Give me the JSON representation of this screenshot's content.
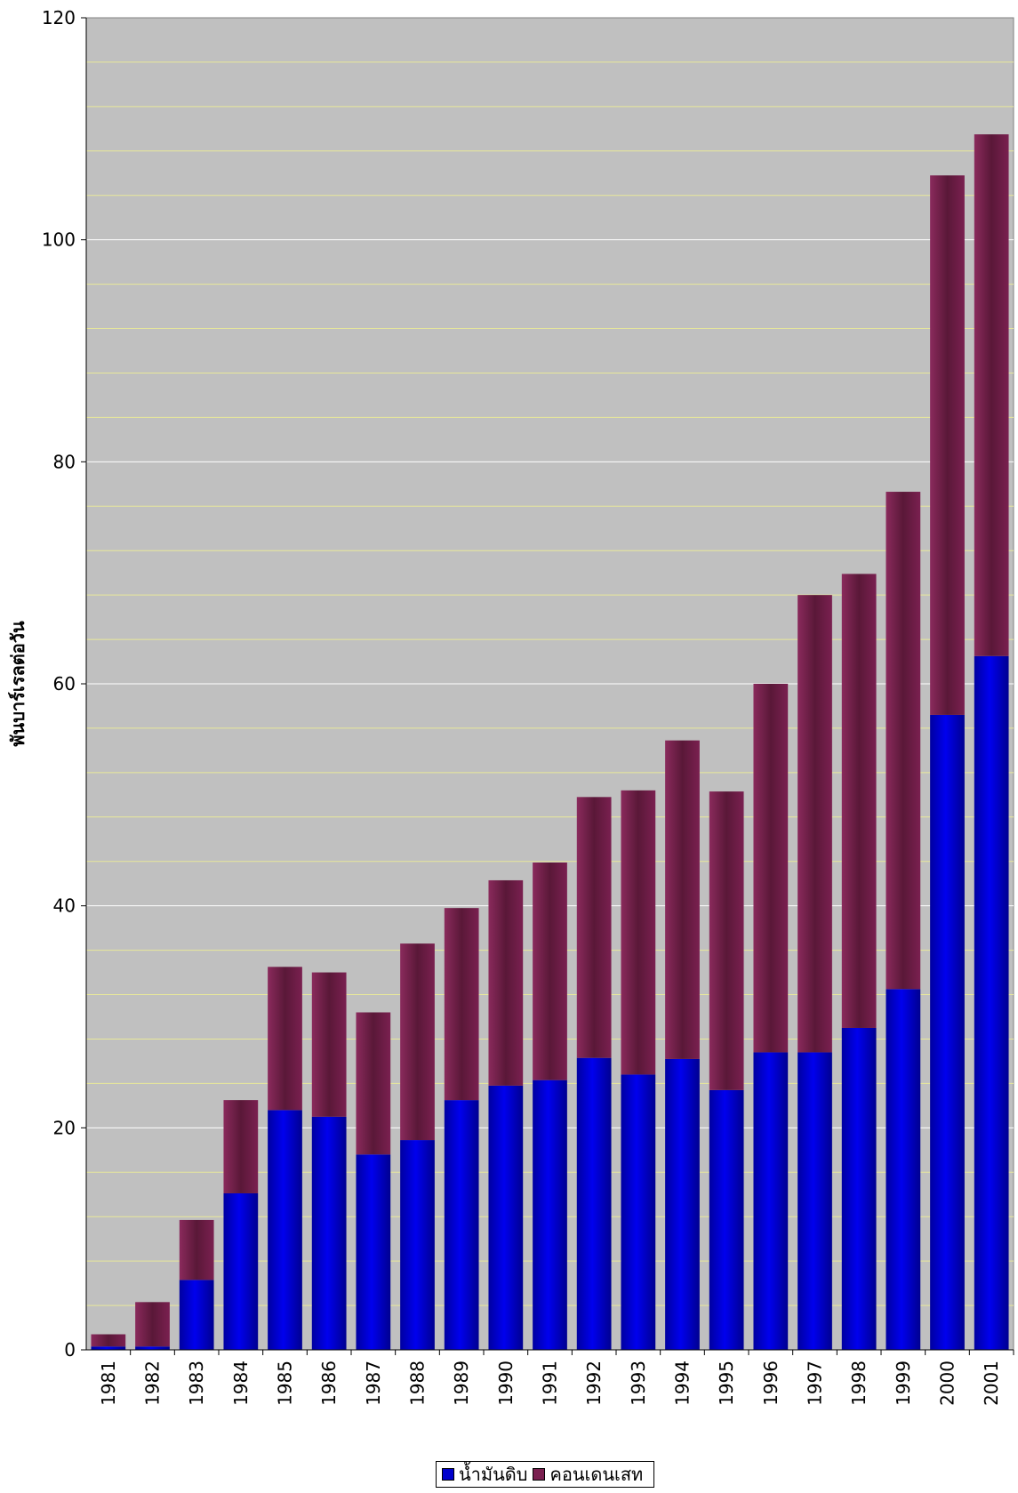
{
  "chart_data": {
    "type": "bar",
    "stacked": true,
    "title": "",
    "xlabel": "",
    "ylabel": "พันบาร์เรลต่อวัน",
    "ylim": [
      0,
      120
    ],
    "yticks": [
      0,
      20,
      40,
      60,
      80,
      100,
      120
    ],
    "minor_grid_step": 4,
    "grid": true,
    "legend_position": "bottom",
    "categories": [
      "1981",
      "1982",
      "1983",
      "1984",
      "1985",
      "1986",
      "1987",
      "1988",
      "1989",
      "1990",
      "1991",
      "1992",
      "1993",
      "1994",
      "1995",
      "1996",
      "1997",
      "1998",
      "1999",
      "2000",
      "2001"
    ],
    "series": [
      {
        "name": "น้ำมันดิบ",
        "color": "#0000cc",
        "values": [
          0.3,
          0.3,
          6.3,
          14.1,
          21.6,
          21.0,
          17.6,
          18.9,
          22.5,
          23.8,
          24.3,
          26.3,
          24.8,
          26.2,
          23.4,
          26.8,
          26.8,
          29.0,
          32.5,
          57.2,
          62.5
        ]
      },
      {
        "name": "คอนเดนเสท",
        "color": "#7a2050",
        "values": [
          1.1,
          4.0,
          5.4,
          8.4,
          12.9,
          13.0,
          12.8,
          17.7,
          17.3,
          18.5,
          19.6,
          23.5,
          25.6,
          28.7,
          26.9,
          33.2,
          41.2,
          40.9,
          44.8,
          48.6,
          47.0
        ]
      }
    ]
  }
}
